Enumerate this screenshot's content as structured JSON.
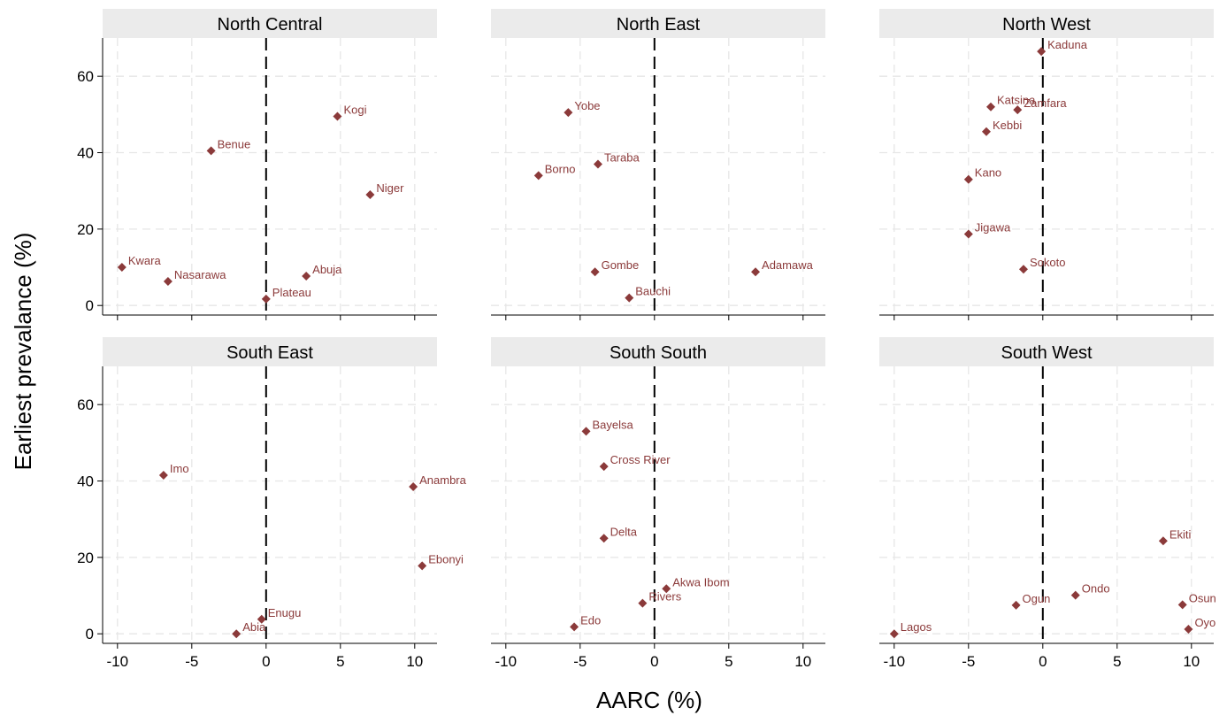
{
  "chart_data": {
    "type": "scatter",
    "ylabel": "Earliest prevalance (%)",
    "xlabel": "AARC (%)",
    "xlim": [
      -11,
      11.5
    ],
    "ylim": [
      -2.5,
      70
    ],
    "x_ticks": [
      -10,
      -5,
      0,
      5,
      10
    ],
    "y_ticks": [
      0,
      20,
      40,
      60
    ],
    "reference_line_x": 0,
    "grid": true,
    "marker": "diamond",
    "marker_color": "#8b3a3a",
    "label_color": "#8b3a3a",
    "strip_color": "#ebebeb",
    "panels": [
      {
        "title": "North Central",
        "points": [
          {
            "label": "Kogi",
            "x": 4.8,
            "y": 49.5
          },
          {
            "label": "Benue",
            "x": -3.7,
            "y": 40.5
          },
          {
            "label": "Niger",
            "x": 7.0,
            "y": 29.0
          },
          {
            "label": "Kwara",
            "x": -9.7,
            "y": 10.0
          },
          {
            "label": "Nasarawa",
            "x": -6.6,
            "y": 6.3
          },
          {
            "label": "Abuja",
            "x": 2.7,
            "y": 7.7
          },
          {
            "label": "Plateau",
            "x": 0.0,
            "y": 1.7
          }
        ]
      },
      {
        "title": "North East",
        "points": [
          {
            "label": "Yobe",
            "x": -5.8,
            "y": 50.5
          },
          {
            "label": "Taraba",
            "x": -3.8,
            "y": 37.0
          },
          {
            "label": "Borno",
            "x": -7.8,
            "y": 34.0
          },
          {
            "label": "Gombe",
            "x": -4.0,
            "y": 8.8
          },
          {
            "label": "Adamawa",
            "x": 6.8,
            "y": 8.8
          },
          {
            "label": "Bauchi",
            "x": -1.7,
            "y": 2.0
          }
        ]
      },
      {
        "title": "North West",
        "points": [
          {
            "label": "Kaduna",
            "x": -0.1,
            "y": 66.5
          },
          {
            "label": "Katsina",
            "x": -3.5,
            "y": 52.0
          },
          {
            "label": "Zamfara",
            "x": -1.7,
            "y": 51.2
          },
          {
            "label": "Kebbi",
            "x": -3.8,
            "y": 45.5
          },
          {
            "label": "Kano",
            "x": -5.0,
            "y": 33.0
          },
          {
            "label": "Jigawa",
            "x": -5.0,
            "y": 18.7
          },
          {
            "label": "Sokoto",
            "x": -1.3,
            "y": 9.5
          }
        ]
      },
      {
        "title": "South East",
        "points": [
          {
            "label": "Imo",
            "x": -6.9,
            "y": 41.5
          },
          {
            "label": "Anambra",
            "x": 9.9,
            "y": 38.5
          },
          {
            "label": "Ebonyi",
            "x": 10.5,
            "y": 17.8
          },
          {
            "label": "Enugu",
            "x": -0.3,
            "y": 3.8
          },
          {
            "label": "Abia",
            "x": -2.0,
            "y": 0.0
          }
        ]
      },
      {
        "title": "South South",
        "points": [
          {
            "label": "Bayelsa",
            "x": -4.6,
            "y": 53.0
          },
          {
            "label": "Cross River",
            "x": -3.4,
            "y": 43.8
          },
          {
            "label": "Delta",
            "x": -3.4,
            "y": 25.0
          },
          {
            "label": "Akwa Ibom",
            "x": 0.8,
            "y": 11.8
          },
          {
            "label": "Rivers",
            "x": -0.8,
            "y": 8.0
          },
          {
            "label": "Edo",
            "x": -5.4,
            "y": 1.8
          }
        ]
      },
      {
        "title": "South West",
        "points": [
          {
            "label": "Ekiti",
            "x": 8.1,
            "y": 24.3
          },
          {
            "label": "Ondo",
            "x": 2.2,
            "y": 10.1
          },
          {
            "label": "Ogun",
            "x": -1.8,
            "y": 7.5
          },
          {
            "label": "Osun",
            "x": 9.4,
            "y": 7.6
          },
          {
            "label": "Oyo",
            "x": 9.8,
            "y": 1.2
          },
          {
            "label": "Lagos",
            "x": -10.0,
            "y": 0.0
          }
        ]
      }
    ]
  }
}
